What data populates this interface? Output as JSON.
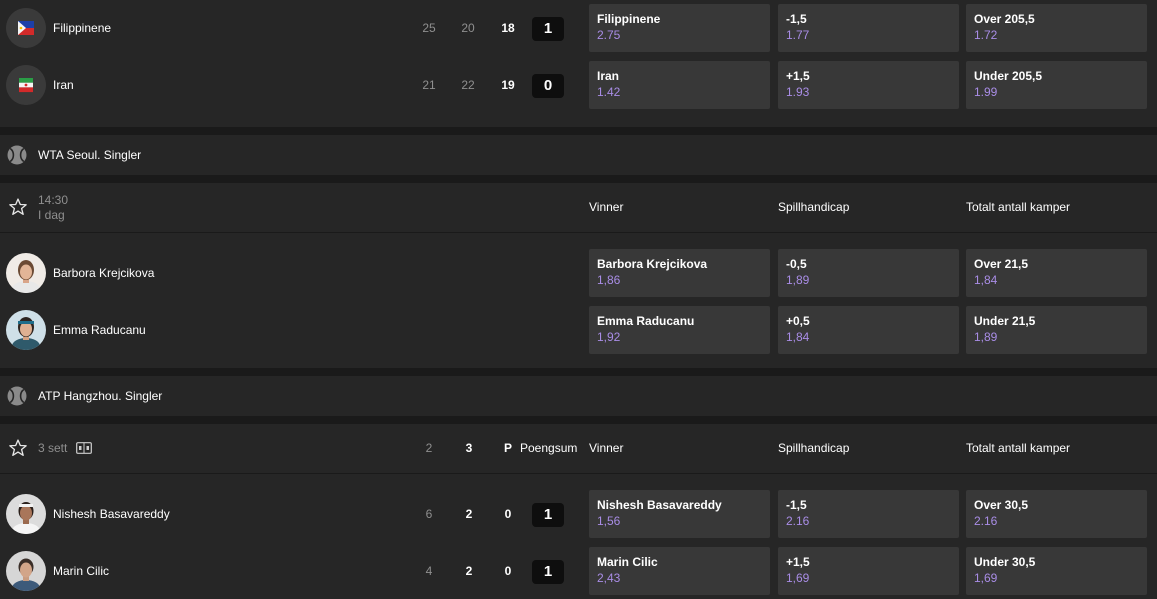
{
  "match1": {
    "team1": {
      "name": "Filippinene",
      "s1": "25",
      "s2": "20",
      "s3": "18",
      "score": "1"
    },
    "team2": {
      "name": "Iran",
      "s1": "21",
      "s2": "22",
      "s3": "19",
      "score": "0"
    },
    "odds": [
      [
        {
          "label": "Filippinene",
          "value": "2.75"
        },
        {
          "label": "-1,5",
          "value": "1.77"
        },
        {
          "label": "Over 205,5",
          "value": "1.72"
        }
      ],
      [
        {
          "label": "Iran",
          "value": "1.42"
        },
        {
          "label": "+1,5",
          "value": "1.93"
        },
        {
          "label": "Under 205,5",
          "value": "1.99"
        }
      ]
    ]
  },
  "league1": {
    "name": "WTA Seoul. Singler",
    "icon": "tennis-ball-icon"
  },
  "match2": {
    "time": "14:30",
    "day": "I dag",
    "columns": {
      "winner": "Vinner",
      "handicap": "Spillhandicap",
      "total": "Totalt antall kamper"
    },
    "player1": {
      "name": "Barbora Krejcikova"
    },
    "player2": {
      "name": "Emma Raducanu"
    },
    "odds": [
      [
        {
          "label": "Barbora Krejcikova",
          "value": "1,86"
        },
        {
          "label": "-0,5",
          "value": "1,89"
        },
        {
          "label": "Over 21,5",
          "value": "1,84"
        }
      ],
      [
        {
          "label": "Emma Raducanu",
          "value": "1,92"
        },
        {
          "label": "+0,5",
          "value": "1,84"
        },
        {
          "label": "Under 21,5",
          "value": "1,89"
        }
      ]
    ]
  },
  "league2": {
    "name": "ATP Hangzhou. Singler",
    "icon": "tennis-ball-icon"
  },
  "match3": {
    "sets_label": "3 sett",
    "col_set2": "2",
    "col_set3": "3",
    "col_p": "P",
    "col_points": "Poengsum",
    "columns": {
      "winner": "Vinner",
      "handicap": "Spillhandicap",
      "total": "Totalt antall kamper"
    },
    "player1": {
      "name": "Nishesh Basavareddy",
      "s2": "6",
      "s3": "2",
      "p": "0",
      "score": "1"
    },
    "player2": {
      "name": "Marin Cilic",
      "s2": "4",
      "s3": "2",
      "p": "0",
      "score": "1"
    },
    "odds": [
      [
        {
          "label": "Nishesh Basavareddy",
          "value": "1,56"
        },
        {
          "label": "-1,5",
          "value": "2.16"
        },
        {
          "label": "Over 30,5",
          "value": "2.16"
        }
      ],
      [
        {
          "label": "Marin Cilic",
          "value": "2,43"
        },
        {
          "label": "+1,5",
          "value": "1,69"
        },
        {
          "label": "Under 30,5",
          "value": "1,69"
        }
      ]
    ]
  },
  "colors": {
    "background": "#1a1a1a",
    "card": "#262626",
    "odds_box": "#383838",
    "odds_value": "#a98de6"
  }
}
